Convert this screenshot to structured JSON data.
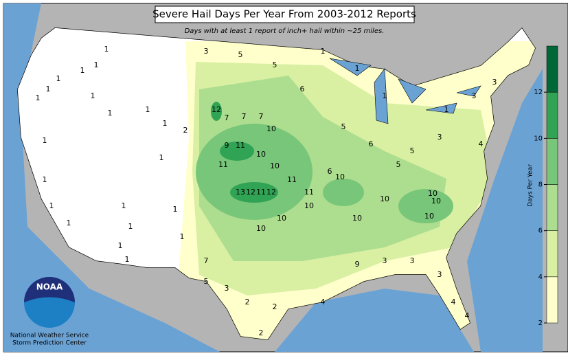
{
  "header": {
    "title": "Severe Hail Days Per Year From 2003-2012 Reports",
    "subtitle": "Days with at least 1 report of inch+ hail within ~25 miles."
  },
  "colorbar": {
    "label": "Days Per Year",
    "lim": [
      2,
      14
    ],
    "ticks": [
      2,
      4,
      6,
      8,
      10,
      12
    ],
    "colors": [
      "#ffffcc",
      "#d9f0a3",
      "#addd8e",
      "#78c679",
      "#31a354",
      "#006837"
    ]
  },
  "map": {
    "grid_labels": [
      1,
      1,
      1,
      1,
      1,
      1,
      1,
      1,
      1,
      1,
      1,
      1,
      1,
      1,
      1,
      1,
      1,
      1,
      2,
      1,
      1,
      1,
      12,
      7,
      7,
      7,
      10,
      9,
      11,
      10,
      11,
      10,
      13,
      12,
      11,
      12,
      11,
      11,
      10,
      10,
      10,
      10,
      10,
      10,
      10,
      10,
      10,
      6,
      5,
      6,
      5,
      5,
      3,
      3,
      3,
      4,
      1,
      1,
      1,
      1,
      3,
      5,
      5,
      6,
      7,
      5,
      3,
      2,
      2,
      2,
      4,
      9,
      3,
      3,
      3,
      4,
      4
    ]
  },
  "credit": {
    "line1": "National Weather Service",
    "line2": "Storm Prediction Center"
  }
}
